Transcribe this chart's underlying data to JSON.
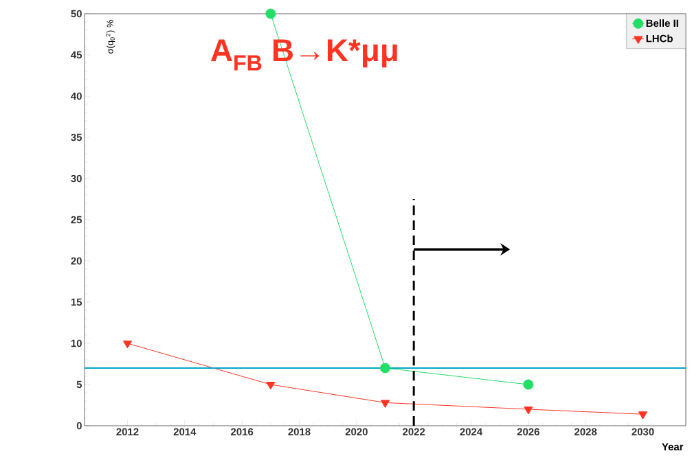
{
  "chart_data": {
    "type": "line",
    "title": "A$_{FB}$ B→K*μμ",
    "xlabel": "Year",
    "ylabel": "σ(q$_{0}$$^{2}$) %",
    "series": [
      {
        "name": "Belle II",
        "color": "#22dd66",
        "marker": "circle",
        "x": [
          2017,
          2021,
          2026
        ],
        "values": [
          50,
          7,
          5
        ]
      },
      {
        "name": "LHCb",
        "color": "#ff3322",
        "marker": "triangle",
        "x": [
          2012,
          2017,
          2021,
          2026,
          2030
        ],
        "values": [
          10,
          5,
          2.8,
          2,
          1.4
        ]
      }
    ],
    "xlim": [
      2010.5,
      2031.5
    ],
    "ylim": [
      0,
      50
    ],
    "xticks": [
      2012,
      2014,
      2016,
      2018,
      2020,
      2022,
      2024,
      2026,
      2028,
      2030
    ],
    "yticks": [
      0,
      5,
      10,
      15,
      20,
      25,
      30,
      35,
      40,
      45,
      50
    ],
    "ref_lines": [
      {
        "axis": "y",
        "value": 7,
        "color": "#00a8c8",
        "line_style": "solid"
      },
      {
        "axis": "x",
        "value": 2022,
        "color": "#000000",
        "line_style": "dashed"
      }
    ],
    "legend": "top right",
    "grid": false
  }
}
